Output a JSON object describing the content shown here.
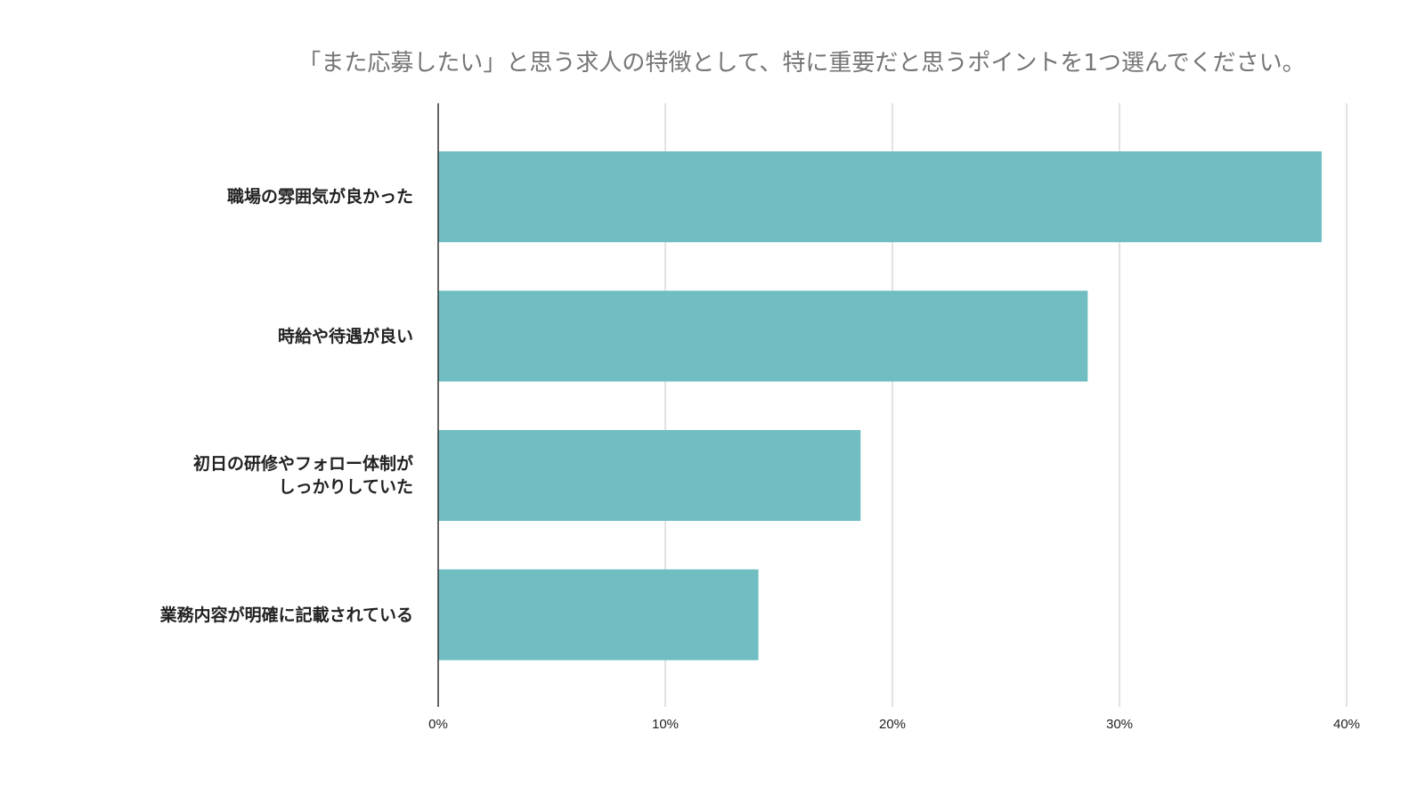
{
  "chart_data": {
    "type": "bar",
    "orientation": "horizontal",
    "title": "「また応募したい」と思う求人の特徴として、特に重要だと思うポイントを1つ選んでください。",
    "xlabel": "",
    "ylabel": "",
    "categories": [
      "職場の雰囲気が良かった",
      "時給や待遇が良い",
      "初日の研修やフォロー体制がしっかりしていた",
      "業務内容が明確に記載されている"
    ],
    "category_lines": [
      [
        "職場の雰囲気が良かった"
      ],
      [
        "時給や待遇が良い"
      ],
      [
        "初日の研修やフォロー体制が",
        "しっかりしていた"
      ],
      [
        "業務内容が明確に記載されている"
      ]
    ],
    "values": [
      38.9,
      28.6,
      18.6,
      14.1
    ],
    "xlim": [
      0,
      40
    ],
    "ticks": [
      0,
      10,
      20,
      30,
      40
    ],
    "tick_labels": [
      "0%",
      "10%",
      "20%",
      "30%",
      "40%"
    ],
    "grid": true,
    "legend": "none",
    "colors": {
      "bar": "#70bec2",
      "grid": "#d9d9d9",
      "axis": "#333333"
    }
  }
}
